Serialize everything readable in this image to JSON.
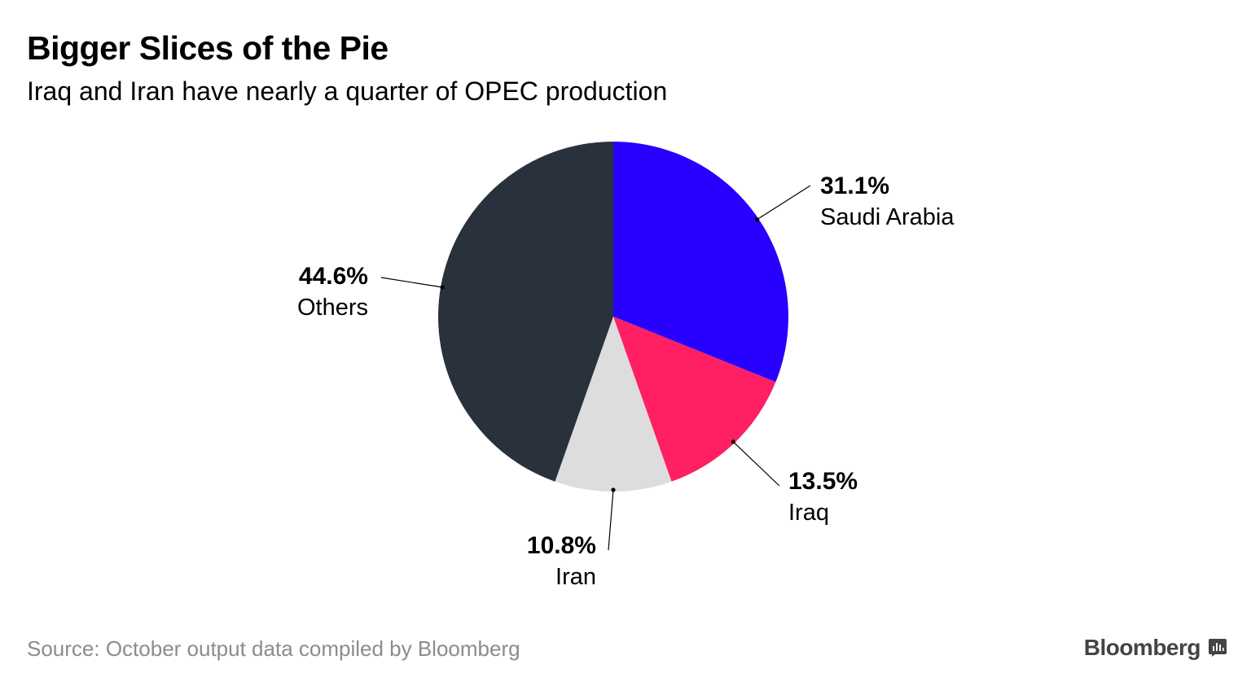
{
  "header": {
    "title": "Bigger Slices of the Pie",
    "subtitle": "Iraq and Iran have nearly a quarter of OPEC production"
  },
  "chart_data": {
    "type": "pie",
    "title": "Bigger Slices of the Pie",
    "subtitle": "Iraq and Iran have nearly a quarter of OPEC production",
    "start_angle_deg": 0,
    "direction": "clockwise",
    "slices": [
      {
        "key": "saudi-arabia",
        "label": "Saudi Arabia",
        "value": 31.1,
        "value_label": "31.1%",
        "color": "#2800ff"
      },
      {
        "key": "iraq",
        "label": "Iraq",
        "value": 13.5,
        "value_label": "13.5%",
        "color": "#ff1f62"
      },
      {
        "key": "iran",
        "label": "Iran",
        "value": 10.8,
        "value_label": "10.8%",
        "color": "#dddddd"
      },
      {
        "key": "others",
        "label": "Others",
        "value": 44.6,
        "value_label": "44.6%",
        "color": "#29313d"
      }
    ]
  },
  "footer": {
    "source": "Source: October output data compiled by Bloomberg",
    "brand": "Bloomberg"
  }
}
